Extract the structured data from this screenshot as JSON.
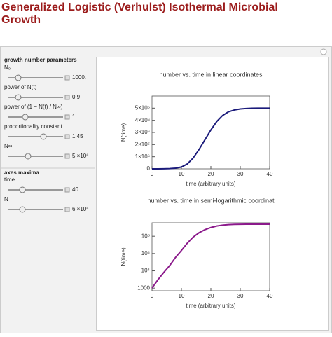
{
  "header": {
    "title": "Generalized Logistic (Verhulst) Isothermal Microbial Growth"
  },
  "controls": {
    "section1": "growth number parameters",
    "items1": [
      {
        "label": "N₀",
        "value": "1000."
      },
      {
        "label": "power of N(t)",
        "value": "0.9"
      },
      {
        "label": "power of (1 − N(t) / N∞)",
        "value": "1."
      },
      {
        "label": "proportionality constant",
        "value": "1.45"
      },
      {
        "label": "N∞",
        "value": "5.×10⁶"
      }
    ],
    "section2": "axes maxima",
    "items2": [
      {
        "label": "time",
        "value": "40."
      },
      {
        "label": "N",
        "value": "6.×10⁶"
      }
    ]
  },
  "chart_data": [
    {
      "type": "line",
      "title": "number vs. time in linear coordinates",
      "x_label": "time (arbitrary units)",
      "y_label": "N(time)",
      "x": [
        0,
        2,
        4,
        6,
        8,
        10,
        12,
        14,
        16,
        18,
        20,
        22,
        24,
        26,
        28,
        30,
        32,
        34,
        36,
        38,
        40
      ],
      "values": [
        1000,
        3000,
        8000,
        20000,
        60000,
        150000,
        400000,
        900000,
        1600000,
        2400000,
        3200000,
        3900000,
        4400000,
        4700000,
        4850000,
        4930000,
        4970000,
        4990000,
        5000000,
        5000000,
        5000000
      ],
      "color": "#1a1a7a",
      "xlim": [
        0,
        40
      ],
      "ylim": [
        0,
        6000000
      ],
      "xticks": [
        0,
        10,
        20,
        30,
        40
      ],
      "yticks": [
        0,
        {
          "value": 1000000,
          "label": "1×10⁶"
        },
        {
          "value": 2000000,
          "label": "2×10⁶"
        },
        {
          "value": 3000000,
          "label": "3×10⁶"
        },
        {
          "value": 4000000,
          "label": "4×10⁶"
        },
        {
          "value": 5000000,
          "label": "5×10⁶"
        }
      ],
      "log_scale": false
    },
    {
      "type": "line",
      "title": "number vs. time in semi-logarithmic coordinat",
      "x_label": "time (arbitrary units)",
      "y_label": "N(time)",
      "x": [
        0,
        2,
        4,
        6,
        8,
        10,
        12,
        14,
        16,
        18,
        20,
        22,
        24,
        26,
        28,
        30,
        32,
        34,
        36,
        38,
        40
      ],
      "values": [
        1000,
        3000,
        8000,
        20000,
        60000,
        150000,
        400000,
        900000,
        1600000,
        2400000,
        3200000,
        3900000,
        4400000,
        4700000,
        4850000,
        4930000,
        4970000,
        4990000,
        5000000,
        5000000,
        5000000
      ],
      "color": "#8b1a8b",
      "xlim": [
        0,
        40
      ],
      "ylim": [
        700,
        6000000
      ],
      "xticks": [
        0,
        10,
        20,
        30,
        40
      ],
      "yticks": [
        1000,
        {
          "value": 10000,
          "label": "10⁴"
        },
        {
          "value": 100000,
          "label": "10⁵"
        },
        {
          "value": 1000000,
          "label": "10⁶"
        }
      ],
      "log_scale": true
    }
  ]
}
